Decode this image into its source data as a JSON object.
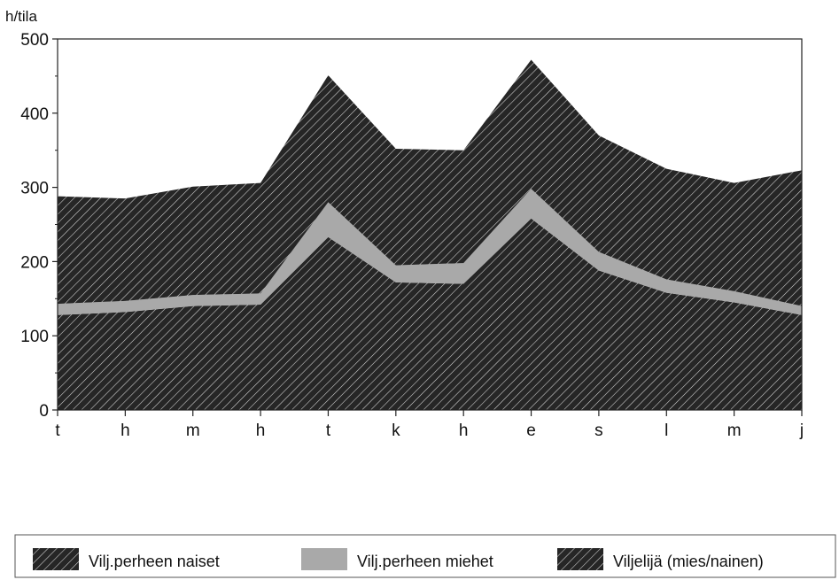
{
  "chart_data": {
    "type": "area",
    "stacked": true,
    "ylabel": "h/tila",
    "ylim": [
      0,
      500
    ],
    "yticks": [
      0,
      100,
      200,
      300,
      400,
      500
    ],
    "categories": [
      "t",
      "h",
      "m",
      "h",
      "t",
      "k",
      "h",
      "e",
      "s",
      "l",
      "m",
      "j"
    ],
    "series": [
      {
        "name": "Vilj.perheen naiset",
        "color": "#2b2b2b",
        "pattern": "diagonal-hatch",
        "values": [
          128,
          132,
          140,
          142,
          233,
          172,
          170,
          258,
          188,
          158,
          145,
          128
        ]
      },
      {
        "name": "Vilj.perheen miehet",
        "color": "#a9a9a9",
        "pattern": "solid",
        "values": [
          15,
          15,
          15,
          15,
          47,
          23,
          28,
          40,
          25,
          18,
          15,
          12
        ]
      },
      {
        "name": "Viljelijä (mies/nainen)",
        "color": "#2b2b2b",
        "pattern": "diagonal-hatch",
        "values": [
          145,
          138,
          146,
          149,
          171,
          157,
          152,
          174,
          157,
          149,
          146,
          183
        ]
      }
    ],
    "grid": false,
    "legend_position": "bottom"
  }
}
